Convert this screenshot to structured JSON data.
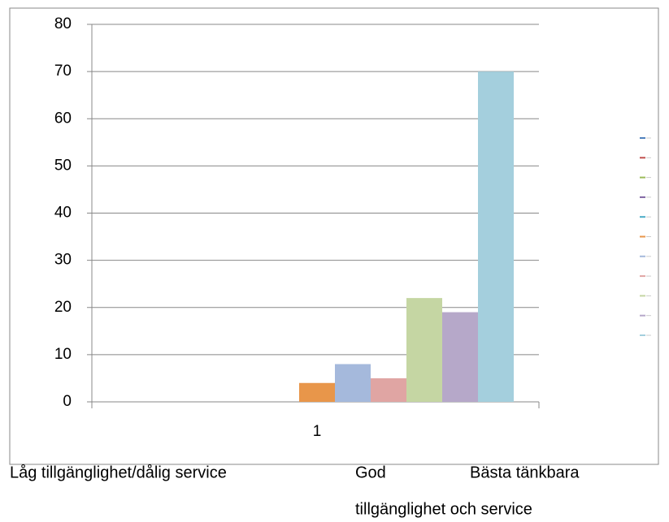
{
  "chart_data": {
    "type": "bar",
    "categories": [
      "1"
    ],
    "series": [
      {
        "color": "#4f81bd",
        "values": [
          0
        ]
      },
      {
        "color": "#c0504d",
        "values": [
          0
        ]
      },
      {
        "color": "#9bbb59",
        "values": [
          0
        ]
      },
      {
        "color": "#8064a2",
        "values": [
          0
        ]
      },
      {
        "color": "#4bacc6",
        "values": [
          0
        ]
      },
      {
        "color": "#e8964a",
        "values": [
          4
        ]
      },
      {
        "color": "#a5b9dc",
        "values": [
          8
        ]
      },
      {
        "color": "#e0a5a3",
        "values": [
          5
        ]
      },
      {
        "color": "#c5d6a3",
        "values": [
          22
        ]
      },
      {
        "color": "#b6a8c9",
        "values": [
          19
        ]
      },
      {
        "color": "#a4cfdd",
        "values": [
          70
        ]
      }
    ],
    "ylim": [
      0,
      80
    ],
    "yticks": [
      0,
      10,
      20,
      30,
      40,
      50,
      60,
      70,
      80
    ],
    "grid": true,
    "legend": "right",
    "annotations": [
      "Låg tillgänglighet/dålig service",
      "God",
      "Bästa tänkbara",
      "tillgänglighet och service"
    ]
  }
}
